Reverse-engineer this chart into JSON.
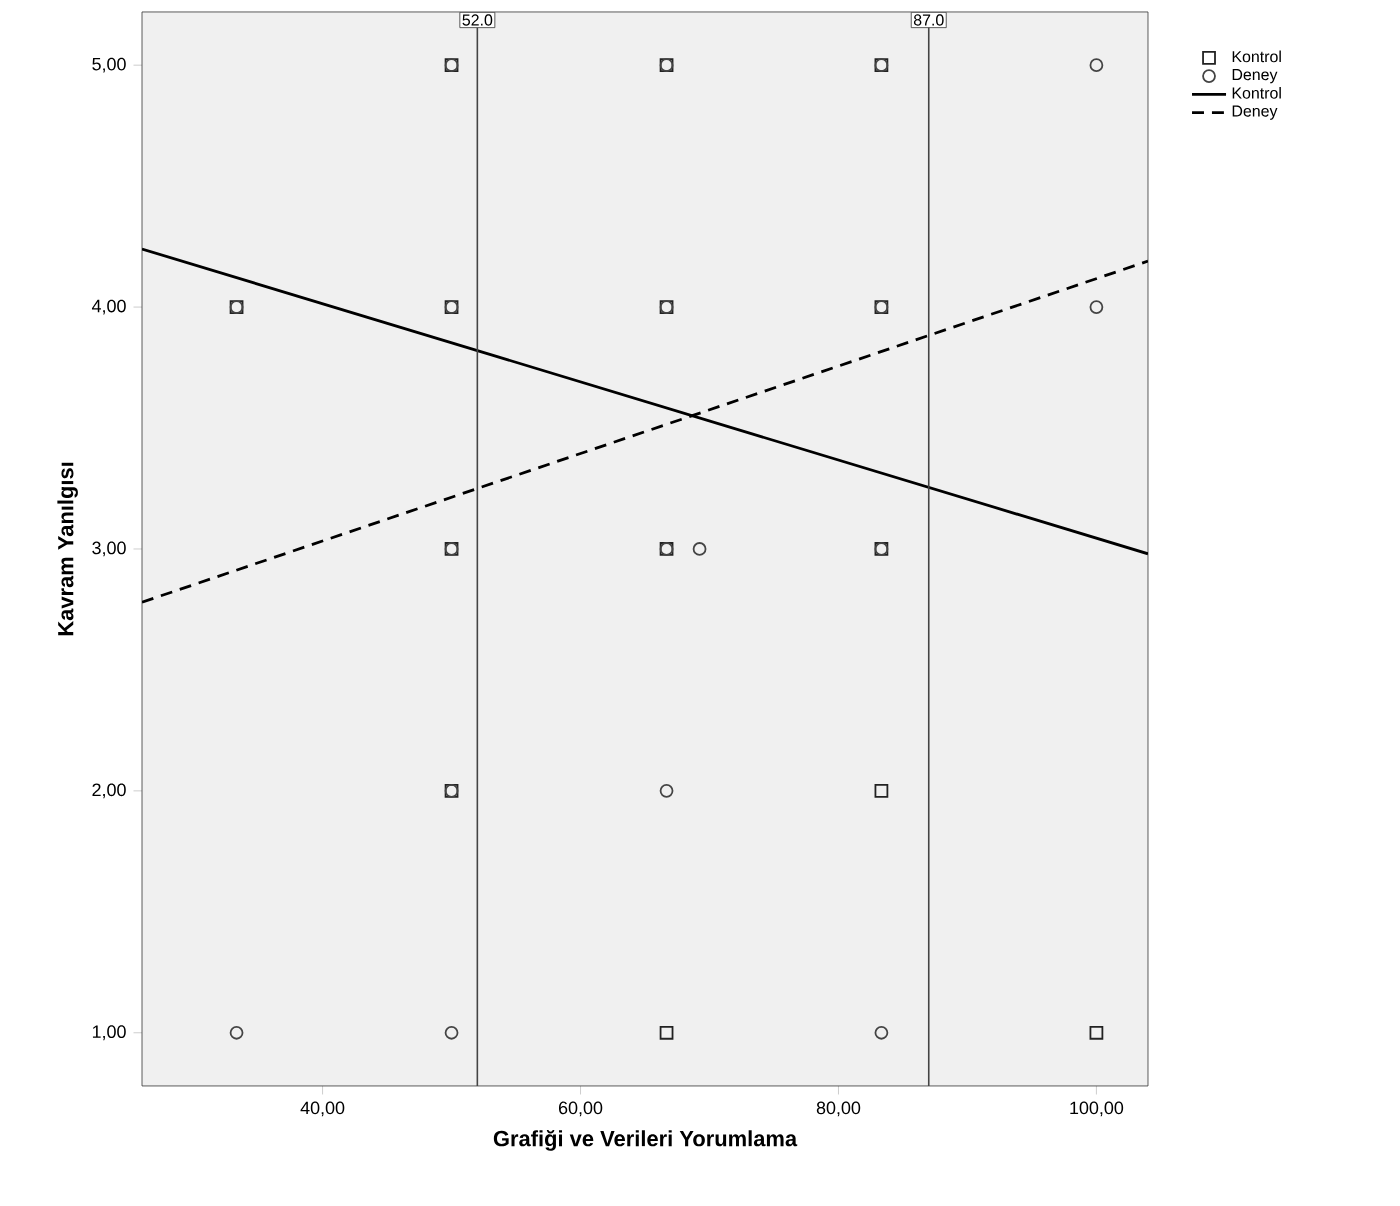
{
  "chart_data": {
    "type": "scatter",
    "xlabel": "Grafiği ve Verileri Yorumlama",
    "ylabel": "Kavram Yanılgısı",
    "xlim": [
      26,
      104
    ],
    "ylim": [
      0.78,
      5.22
    ],
    "xticks": [
      {
        "value": 40,
        "label": "40,00"
      },
      {
        "value": 60,
        "label": "60,00"
      },
      {
        "value": 80,
        "label": "80,00"
      },
      {
        "value": 100,
        "label": "100,00"
      }
    ],
    "yticks": [
      {
        "value": 1,
        "label": "1,00"
      },
      {
        "value": 2,
        "label": "2,00"
      },
      {
        "value": 3,
        "label": "3,00"
      },
      {
        "value": 4,
        "label": "4,00"
      },
      {
        "value": 5,
        "label": "5,00"
      }
    ],
    "series": [
      {
        "name": "Kontrol",
        "marker": "square",
        "color": "#222222",
        "x": [
          33.33,
          50,
          50,
          50,
          50,
          66.67,
          66.67,
          66.67,
          66.67,
          83.33,
          83.33,
          83.33,
          83.33,
          100
        ],
        "values": [
          4,
          5,
          4,
          3,
          2,
          5,
          4,
          3,
          1,
          5,
          4,
          3,
          2,
          1
        ]
      },
      {
        "name": "Deney",
        "marker": "circle",
        "color": "#444444",
        "x": [
          33.33,
          50,
          50,
          50,
          50,
          66.67,
          66.67,
          66.67,
          83.33,
          83.33,
          83.33,
          33.33,
          50,
          66.67,
          69.23,
          83.33,
          100,
          100
        ],
        "values": [
          4,
          5,
          4,
          3,
          2,
          5,
          4,
          3,
          5,
          4,
          3,
          1,
          1,
          2,
          3,
          1,
          5,
          4
        ]
      },
      {
        "name": "Kontrol",
        "type": "line",
        "marker": "none",
        "line_style": "solid",
        "color": "#000000",
        "x": [
          26,
          104
        ],
        "values": [
          4.24,
          2.98
        ]
      },
      {
        "name": "Deney",
        "type": "line",
        "marker": "none",
        "line_style": "dashed",
        "color": "#000000",
        "x": [
          26,
          104
        ],
        "values": [
          2.78,
          4.19
        ]
      }
    ],
    "ref_lines": [
      {
        "axis": "x",
        "value": 52,
        "label": "52.0",
        "color": "#444444"
      },
      {
        "axis": "x",
        "value": 87,
        "label": "87.0",
        "color": "#444444"
      }
    ],
    "grid": false,
    "legend": "top right"
  }
}
